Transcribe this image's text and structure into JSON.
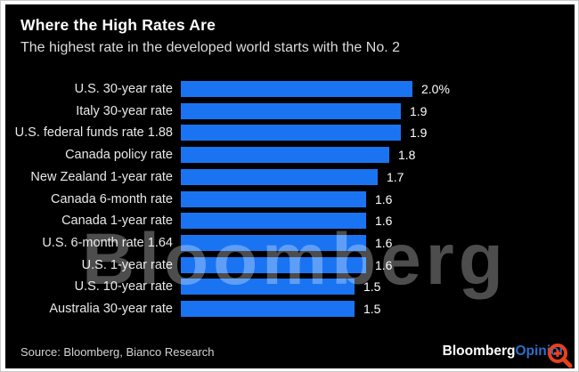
{
  "header": {
    "title": "Where the High Rates Are",
    "subtitle": "The highest rate in the developed world starts with the No. 2"
  },
  "chart_data": {
    "type": "bar",
    "orientation": "horizontal",
    "title": "Where the High Rates Are",
    "subtitle": "The highest rate in the developed world starts with the No. 2",
    "categories": [
      "U.S. 30-year rate",
      "Italy 30-year rate",
      "U.S. federal funds rate 1.88",
      "Canada policy rate",
      "New Zealand 1-year rate",
      "Canada 6-month rate",
      "Canada 1-year rate",
      "U.S. 6-month rate 1.64",
      "U.S. 1-year rate",
      "U.S. 10-year rate",
      "Australia 30-year rate"
    ],
    "values": [
      2.0,
      1.9,
      1.9,
      1.8,
      1.7,
      1.6,
      1.6,
      1.6,
      1.6,
      1.5,
      1.5
    ],
    "value_labels": [
      "2.0%",
      "1.9",
      "1.9",
      "1.8",
      "1.7",
      "1.6",
      "1.6",
      "1.6",
      "1.6",
      "1.5",
      "1.5"
    ],
    "xlim": [
      0,
      2.0
    ],
    "grid": false,
    "legend": null,
    "bar_color": "#1a74f2",
    "background_color": "#000000",
    "text_color": "#e9e9e9"
  },
  "watermark": {
    "text": "Bloomberg"
  },
  "footer": {
    "source": "Source: Bloomberg, Bianco Research",
    "logo_bloomberg": "Bloomberg",
    "logo_opinion": "Opinion",
    "logo_opinion_color": "#2e6fc9"
  },
  "overlay": {
    "zoom_icon_color": "#e8401f"
  }
}
